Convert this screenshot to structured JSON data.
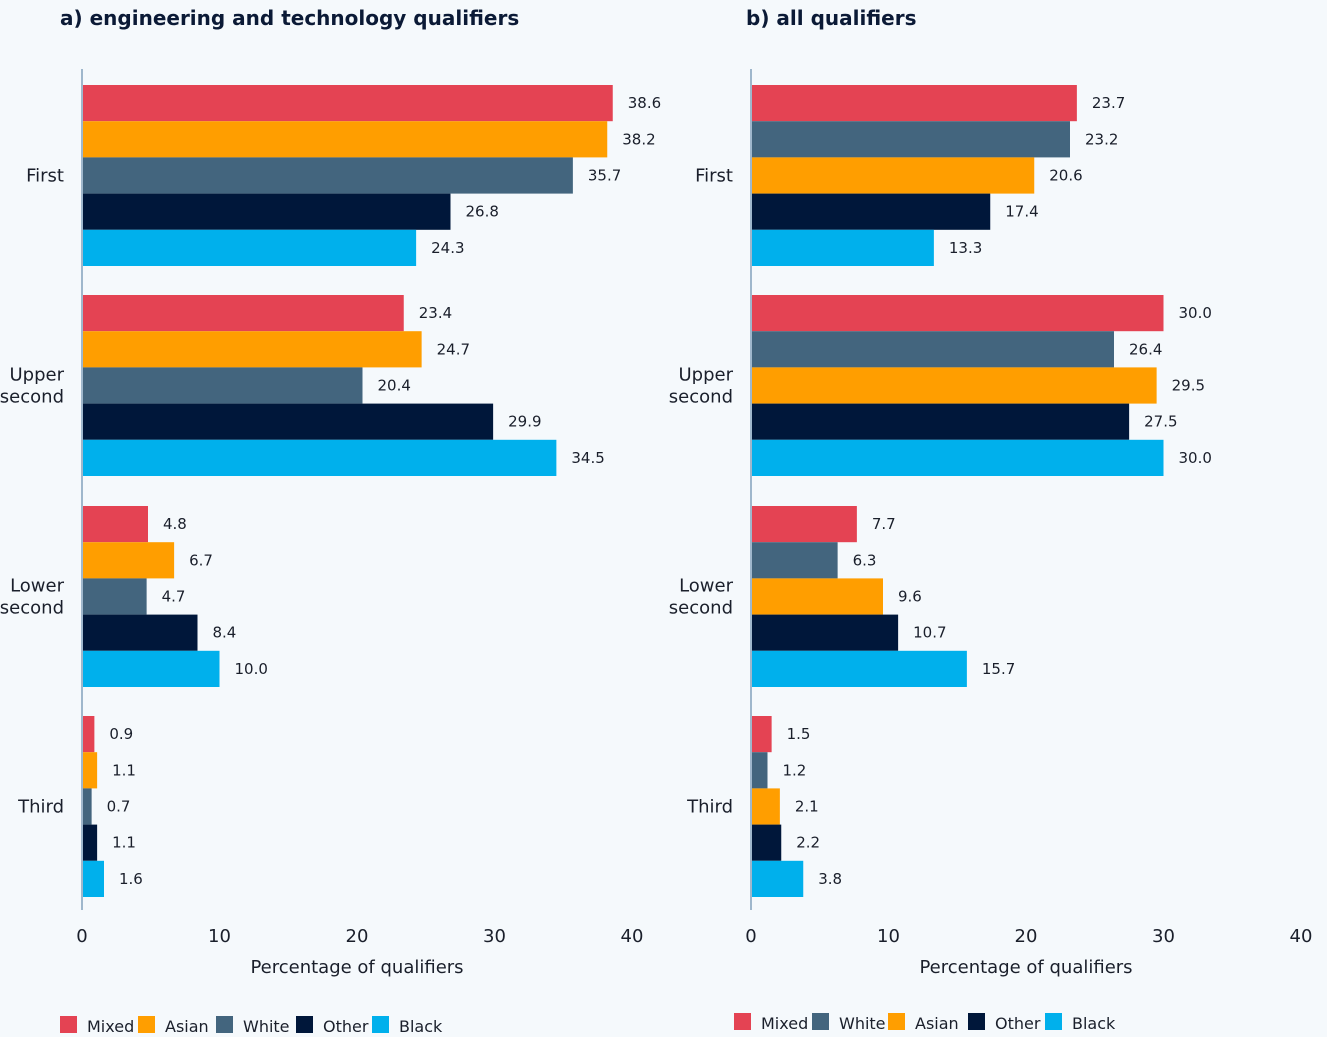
{
  "chart_data": [
    {
      "type": "bar",
      "orientation": "horizontal",
      "title": "a) engineering and technology qualifiers",
      "xlabel": "Percentage of qualifiers",
      "xlim": [
        0,
        40
      ],
      "xticks": [
        0,
        10,
        20,
        30,
        40
      ],
      "categories": [
        "First",
        "Upper second",
        "Lower second",
        "Third"
      ],
      "legend_position": "bottom",
      "series": [
        {
          "name": "Mixed",
          "color": "#e44353",
          "values": [
            38.6,
            23.4,
            4.8,
            0.9
          ]
        },
        {
          "name": "Asian",
          "color": "#ff9e00",
          "values": [
            38.2,
            24.7,
            6.7,
            1.1
          ]
        },
        {
          "name": "White",
          "color": "#43657e",
          "values": [
            35.7,
            20.4,
            4.7,
            0.7
          ]
        },
        {
          "name": "Other",
          "color": "#00173a",
          "values": [
            26.8,
            29.9,
            8.4,
            1.1
          ]
        },
        {
          "name": "Black",
          "color": "#00b0ec",
          "values": [
            24.3,
            34.5,
            10.0,
            1.6
          ]
        }
      ]
    },
    {
      "type": "bar",
      "orientation": "horizontal",
      "title": "b) all qualifiers",
      "xlabel": "Percentage of qualifiers",
      "xlim": [
        0,
        40
      ],
      "xticks": [
        0,
        10,
        20,
        30,
        40
      ],
      "categories": [
        "First",
        "Upper second",
        "Lower second",
        "Third"
      ],
      "legend_position": "bottom",
      "series": [
        {
          "name": "Mixed",
          "color": "#e44353",
          "values": [
            23.7,
            30.0,
            7.7,
            1.5
          ]
        },
        {
          "name": "White",
          "color": "#43657e",
          "values": [
            23.2,
            26.4,
            6.3,
            1.2
          ]
        },
        {
          "name": "Asian",
          "color": "#ff9e00",
          "values": [
            20.6,
            29.5,
            9.6,
            2.1
          ]
        },
        {
          "name": "Other",
          "color": "#00173a",
          "values": [
            17.4,
            27.5,
            10.7,
            2.2
          ]
        },
        {
          "name": "Black",
          "color": "#00b0ec",
          "values": [
            13.3,
            30.0,
            15.7,
            3.8
          ]
        }
      ]
    }
  ],
  "category_label_lines": [
    [
      "First"
    ],
    [
      "Upper",
      "second"
    ],
    [
      "Lower",
      "second"
    ],
    [
      "Third"
    ]
  ],
  "axis_color": "#9fb7cc"
}
